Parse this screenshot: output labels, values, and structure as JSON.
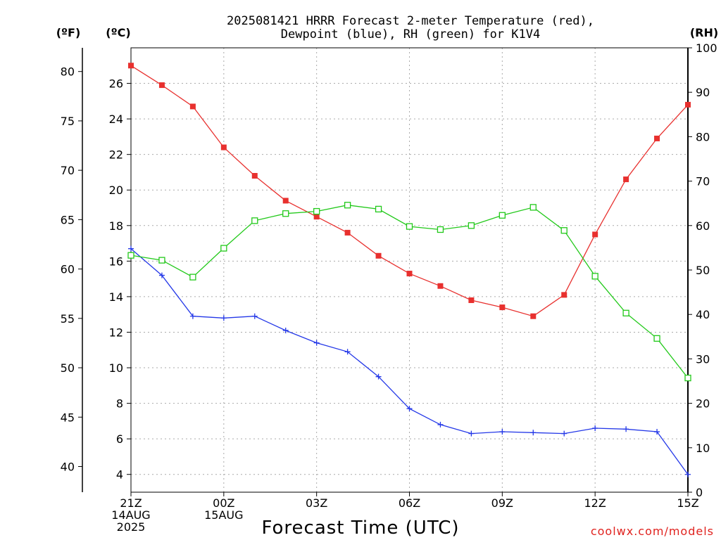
{
  "chart_data": {
    "type": "line",
    "title_line1": "2025081421 HRRR Forecast 2-meter Temperature (red),",
    "title_line2": "Dewpoint (blue), RH (green) for K1V4",
    "xlabel": "Forecast Time (UTC)",
    "credit": "coolwx.com/models",
    "units": {
      "fahrenheit": "(ºF)",
      "celsius": "(ºC)",
      "rh": "(RH)"
    },
    "x_hours": [
      0,
      1,
      2,
      3,
      4,
      5,
      6,
      7,
      8,
      9,
      10,
      11,
      12,
      13,
      14,
      15,
      16,
      17,
      18
    ],
    "x_tick_labels": [
      {
        "hour": 0,
        "lines": [
          "21Z",
          "14AUG",
          "2025"
        ]
      },
      {
        "hour": 3,
        "lines": [
          "00Z",
          "15AUG"
        ]
      },
      {
        "hour": 6,
        "lines": [
          "03Z"
        ]
      },
      {
        "hour": 9,
        "lines": [
          "06Z"
        ]
      },
      {
        "hour": 12,
        "lines": [
          "09Z"
        ]
      },
      {
        "hour": 15,
        "lines": [
          "12Z"
        ]
      },
      {
        "hour": 18,
        "lines": [
          "15Z"
        ]
      }
    ],
    "ylim_celsius": [
      3,
      28
    ],
    "ylim_rh": [
      0,
      100
    ],
    "celsius_ticks": [
      4,
      6,
      8,
      10,
      12,
      14,
      16,
      18,
      20,
      22,
      24,
      26
    ],
    "fahrenheit_ticks": [
      40,
      45,
      50,
      55,
      60,
      65,
      70,
      75,
      80
    ],
    "rh_ticks": [
      0,
      10,
      20,
      30,
      40,
      50,
      60,
      70,
      80,
      90,
      100
    ],
    "grid": true,
    "series": [
      {
        "name": "Temperature",
        "axis": "celsius",
        "color": "#e8302e",
        "marker": "filled-square",
        "values": [
          27.0,
          25.9,
          24.7,
          22.4,
          20.8,
          19.4,
          18.5,
          17.6,
          16.3,
          15.3,
          14.6,
          13.8,
          13.4,
          12.9,
          14.1,
          17.5,
          20.6,
          22.9,
          24.8
        ]
      },
      {
        "name": "Dewpoint",
        "axis": "celsius",
        "color": "#2438e8",
        "marker": "plus",
        "values": [
          16.7,
          15.2,
          12.9,
          12.8,
          12.9,
          12.1,
          11.4,
          10.9,
          9.5,
          7.7,
          6.8,
          6.3,
          6.4,
          6.35,
          6.3,
          6.6,
          6.55,
          6.4,
          4.0
        ]
      },
      {
        "name": "RH",
        "axis": "rh",
        "color": "#22c91a",
        "marker": "open-square",
        "values": [
          53.3,
          52.2,
          48.4,
          54.9,
          61.1,
          62.7,
          63.2,
          64.6,
          63.7,
          59.8,
          59.1,
          60.0,
          62.3,
          64.1,
          58.9,
          48.6,
          40.3,
          34.6,
          25.7
        ]
      }
    ]
  }
}
